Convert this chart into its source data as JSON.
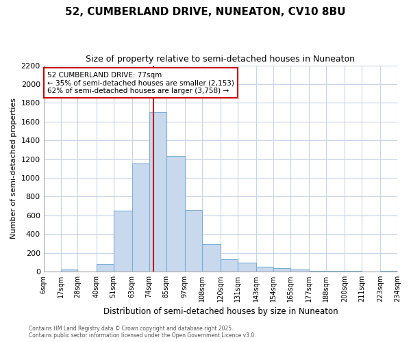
{
  "title1": "52, CUMBERLAND DRIVE, NUNEATON, CV10 8BU",
  "title2": "Size of property relative to semi-detached houses in Nuneaton",
  "xlabel": "Distribution of semi-detached houses by size in Nuneaton",
  "ylabel": "Number of semi-detached properties",
  "bar_color": "#c8d9ee",
  "bar_edge_color": "#7bafd4",
  "bg_color": "#ffffff",
  "plot_bg_color": "#ffffff",
  "grid_color": "#c8d4e8",
  "annotation_line_color": "#cc0000",
  "annotation_property": "52 CUMBERLAND DRIVE: 77sqm",
  "annotation_smaller": "← 35% of semi-detached houses are smaller (2,153)",
  "annotation_larger": "62% of semi-detached houses are larger (3,758) →",
  "property_sqm": 77,
  "bin_edges": [
    6,
    17,
    28,
    40,
    51,
    63,
    74,
    85,
    97,
    108,
    120,
    131,
    143,
    154,
    165,
    177,
    188,
    200,
    211,
    223,
    234
  ],
  "bin_labels": [
    "6sqm",
    "17sqm",
    "28sqm",
    "40sqm",
    "51sqm",
    "63sqm",
    "74sqm",
    "85sqm",
    "97sqm",
    "108sqm",
    "120sqm",
    "131sqm",
    "143sqm",
    "154sqm",
    "165sqm",
    "177sqm",
    "188sqm",
    "200sqm",
    "211sqm",
    "223sqm",
    "234sqm"
  ],
  "bar_heights": [
    0,
    25,
    0,
    80,
    650,
    1150,
    1700,
    1230,
    660,
    295,
    130,
    95,
    50,
    35,
    25,
    10,
    5,
    5,
    0,
    5
  ],
  "ylim": [
    0,
    2200
  ],
  "yticks": [
    0,
    200,
    400,
    600,
    800,
    1000,
    1200,
    1400,
    1600,
    1800,
    2000,
    2200
  ],
  "footnote1": "Contains HM Land Registry data © Crown copyright and database right 2025.",
  "footnote2": "Contains public sector information licensed under the Open Government Licence v3.0."
}
